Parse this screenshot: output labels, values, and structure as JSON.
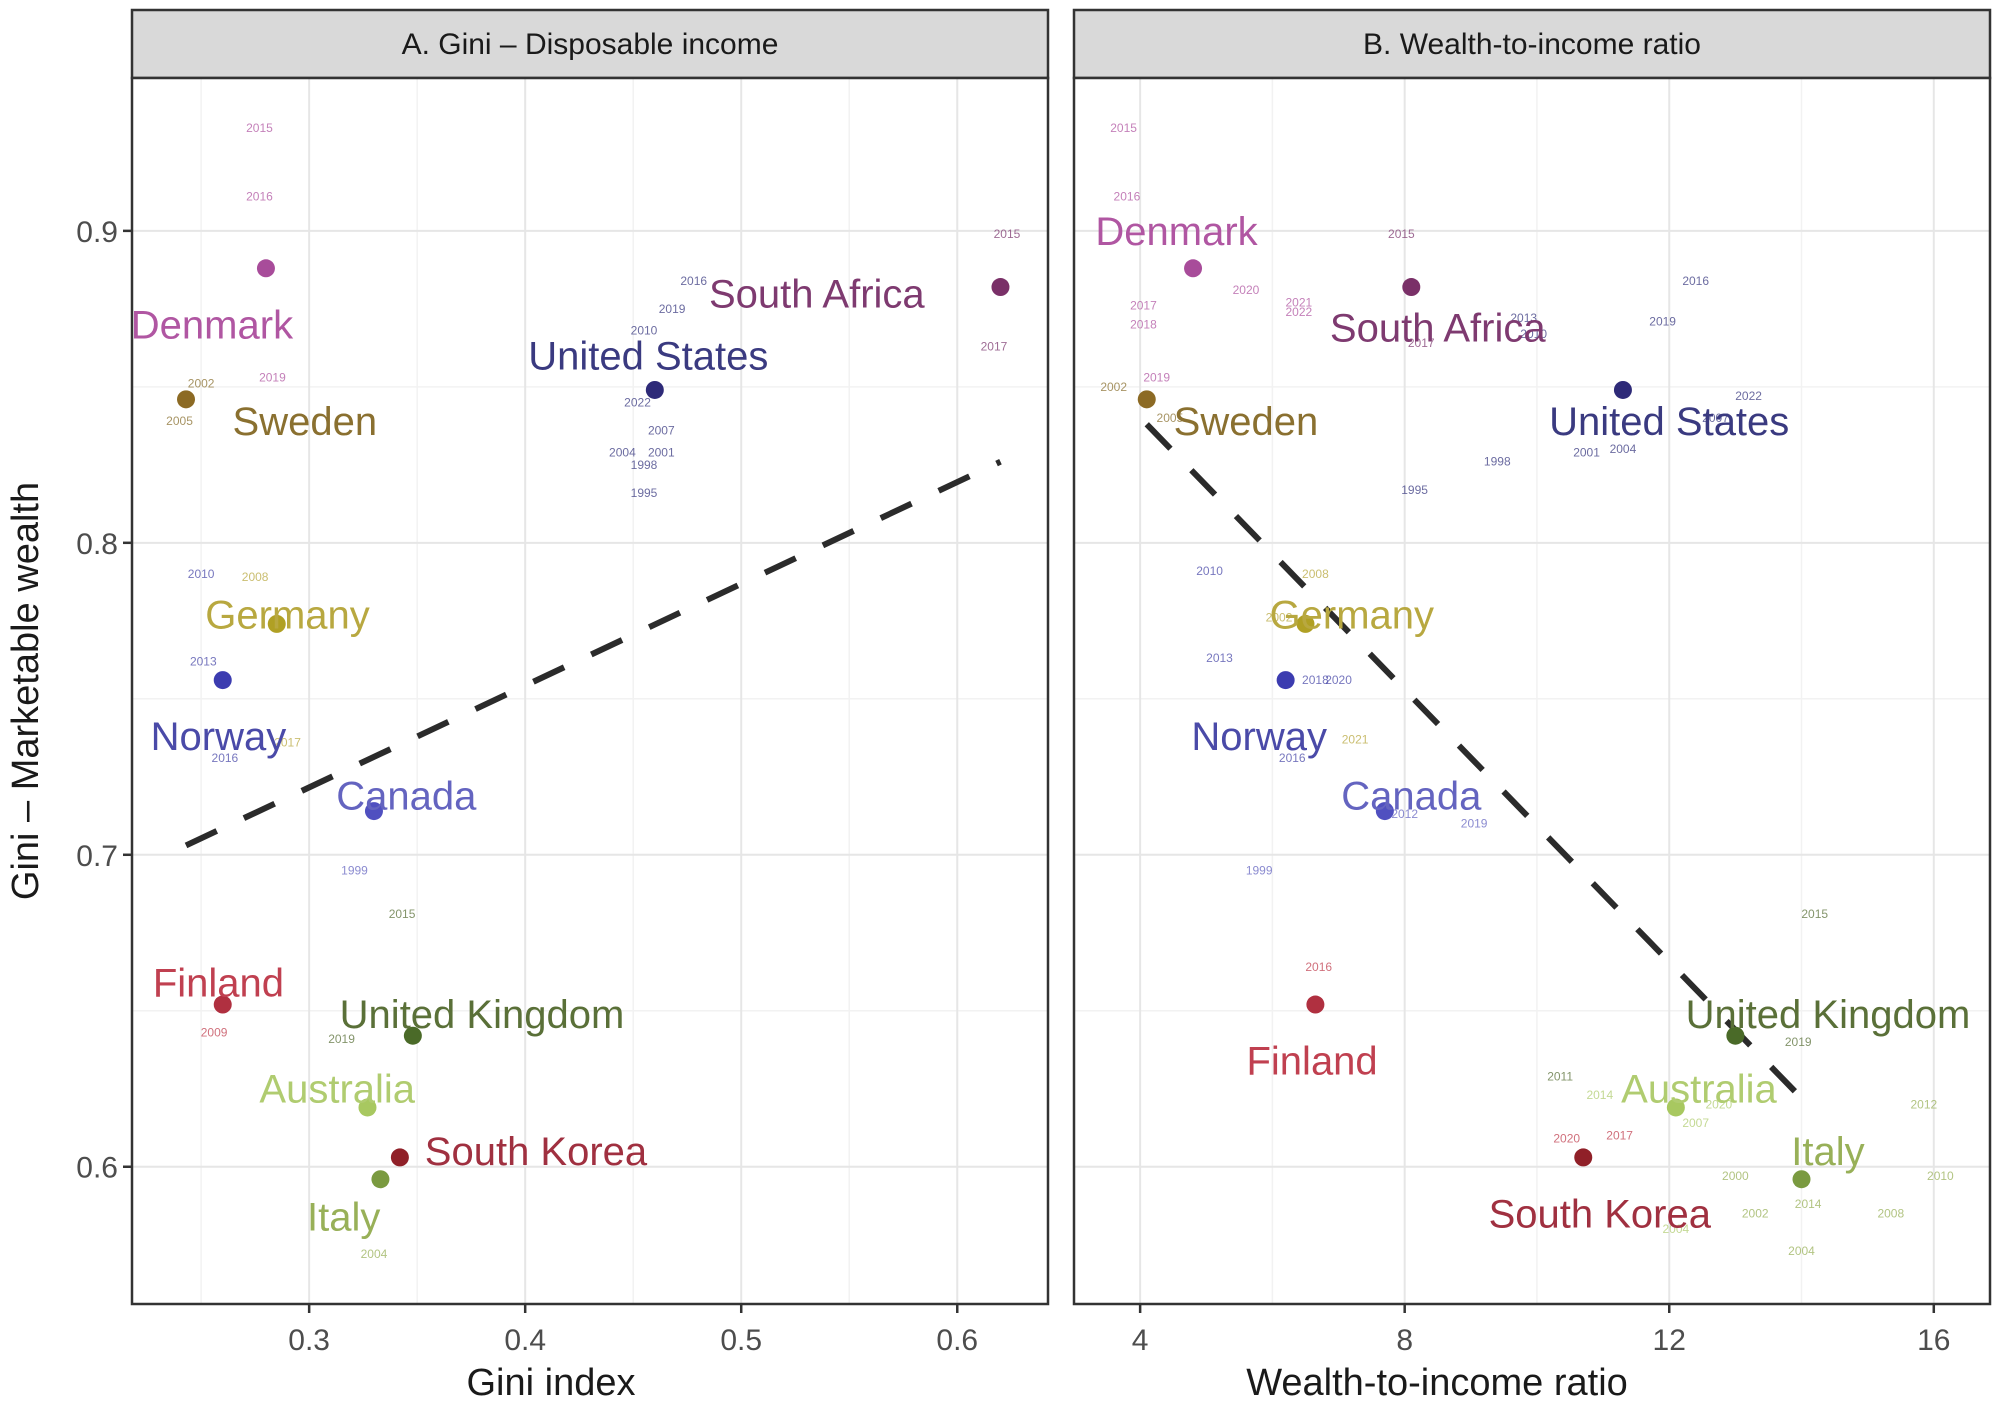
{
  "figure": {
    "ylabel": "Gini – Marketable wealth"
  },
  "chart_data": [
    {
      "type": "scatter",
      "panel": "A",
      "title": "A. Gini – Disposable income",
      "xlabel": "Gini index",
      "ylabel": "Gini – Marketable wealth",
      "xlim": [
        0.218,
        0.642
      ],
      "ylim": [
        0.556,
        0.949
      ],
      "xticks": [
        0.3,
        0.4,
        0.5,
        0.6
      ],
      "xtick_labels": [
        "0.3",
        "0.4",
        "0.5",
        "0.6"
      ],
      "yticks": [
        0.6,
        0.7,
        0.8,
        0.9
      ],
      "ytick_labels": [
        "0.6",
        "0.7",
        "0.8",
        "0.9"
      ],
      "grid": true,
      "trend_line": {
        "style": "dashed",
        "x": [
          0.243,
          0.62
        ],
        "y": [
          0.703,
          0.826
        ]
      },
      "points": [
        {
          "country": "Denmark",
          "x": 0.28,
          "y": 0.888,
          "color": "#a84c9a",
          "label_color": "#b056a2"
        },
        {
          "country": "South Africa",
          "x": 0.62,
          "y": 0.882,
          "color": "#7a3068",
          "label_color": "#7e3a70"
        },
        {
          "country": "United States",
          "x": 0.46,
          "y": 0.849,
          "color": "#2e2a78",
          "label_color": "#3a3a80"
        },
        {
          "country": "Sweden",
          "x": 0.243,
          "y": 0.846,
          "color": "#8c6a24",
          "label_color": "#8a7030"
        },
        {
          "country": "Germany",
          "x": 0.285,
          "y": 0.774,
          "color": "#b0a024",
          "label_color": "#b8a840"
        },
        {
          "country": "Norway",
          "x": 0.26,
          "y": 0.756,
          "color": "#3c3cb0",
          "label_color": "#4a4aa8"
        },
        {
          "country": "Canada",
          "x": 0.33,
          "y": 0.714,
          "color": "#5050c0",
          "label_color": "#6464c0"
        },
        {
          "country": "Finland",
          "x": 0.26,
          "y": 0.652,
          "color": "#b03040",
          "label_color": "#c04050"
        },
        {
          "country": "United Kingdom",
          "x": 0.348,
          "y": 0.642,
          "color": "#4a6a28",
          "label_color": "#5a7038"
        },
        {
          "country": "Australia",
          "x": 0.327,
          "y": 0.619,
          "color": "#a8c860",
          "label_color": "#b0cc70"
        },
        {
          "country": "South Korea",
          "x": 0.342,
          "y": 0.603,
          "color": "#902028",
          "label_color": "#a03040"
        },
        {
          "country": "Italy",
          "x": 0.333,
          "y": 0.596,
          "color": "#7a9a40",
          "label_color": "#98b058"
        }
      ],
      "country_labels": [
        {
          "text": "Denmark",
          "x": 0.255,
          "y": 0.87,
          "color": "#b056a2"
        },
        {
          "text": "South Africa",
          "x": 0.535,
          "y": 0.88,
          "color": "#7e3a70"
        },
        {
          "text": "United States",
          "x": 0.457,
          "y": 0.86,
          "color": "#3a3a80"
        },
        {
          "text": "Sweden",
          "x": 0.298,
          "y": 0.839,
          "color": "#8a7030"
        },
        {
          "text": "Germany",
          "x": 0.29,
          "y": 0.777,
          "color": "#b8a840"
        },
        {
          "text": "Norway",
          "x": 0.258,
          "y": 0.738,
          "color": "#4a4aa8"
        },
        {
          "text": "Canada",
          "x": 0.345,
          "y": 0.719,
          "color": "#6464c0"
        },
        {
          "text": "Finland",
          "x": 0.258,
          "y": 0.659,
          "color": "#c04050"
        },
        {
          "text": "United Kingdom",
          "x": 0.38,
          "y": 0.649,
          "color": "#5a7038"
        },
        {
          "text": "Australia",
          "x": 0.313,
          "y": 0.625,
          "color": "#b0cc70"
        },
        {
          "text": "South Korea",
          "x": 0.405,
          "y": 0.605,
          "color": "#a03040"
        },
        {
          "text": "Italy",
          "x": 0.316,
          "y": 0.584,
          "color": "#98b058"
        }
      ],
      "year_labels": [
        {
          "text": "2015",
          "x": 0.277,
          "y": 0.933,
          "color": "#b056a2"
        },
        {
          "text": "2016",
          "x": 0.277,
          "y": 0.911,
          "color": "#b056a2"
        },
        {
          "text": "2019",
          "x": 0.283,
          "y": 0.853,
          "color": "#b056a2"
        },
        {
          "text": "2002",
          "x": 0.25,
          "y": 0.851,
          "color": "#8a7030"
        },
        {
          "text": "2005",
          "x": 0.24,
          "y": 0.839,
          "color": "#8a7030"
        },
        {
          "text": "2015",
          "x": 0.623,
          "y": 0.899,
          "color": "#7e3a70"
        },
        {
          "text": "2017",
          "x": 0.617,
          "y": 0.863,
          "color": "#7e3a70"
        },
        {
          "text": "2016",
          "x": 0.478,
          "y": 0.884,
          "color": "#3a3a80"
        },
        {
          "text": "2019",
          "x": 0.468,
          "y": 0.875,
          "color": "#3a3a80"
        },
        {
          "text": "2010",
          "x": 0.455,
          "y": 0.868,
          "color": "#3a3a80"
        },
        {
          "text": "2022",
          "x": 0.452,
          "y": 0.845,
          "color": "#3a3a80"
        },
        {
          "text": "2007",
          "x": 0.463,
          "y": 0.836,
          "color": "#3a3a80"
        },
        {
          "text": "2004",
          "x": 0.445,
          "y": 0.829,
          "color": "#3a3a80"
        },
        {
          "text": "2001",
          "x": 0.463,
          "y": 0.829,
          "color": "#3a3a80"
        },
        {
          "text": "1998",
          "x": 0.455,
          "y": 0.825,
          "color": "#3a3a80"
        },
        {
          "text": "1995",
          "x": 0.455,
          "y": 0.816,
          "color": "#3a3a80"
        },
        {
          "text": "2010",
          "x": 0.25,
          "y": 0.79,
          "color": "#4a4aa8"
        },
        {
          "text": "2008",
          "x": 0.275,
          "y": 0.789,
          "color": "#b8a840"
        },
        {
          "text": "2013",
          "x": 0.251,
          "y": 0.762,
          "color": "#4a4aa8"
        },
        {
          "text": "2017",
          "x": 0.29,
          "y": 0.736,
          "color": "#b8a840"
        },
        {
          "text": "2016",
          "x": 0.261,
          "y": 0.731,
          "color": "#4a4aa8"
        },
        {
          "text": "1999",
          "x": 0.321,
          "y": 0.695,
          "color": "#6464c0"
        },
        {
          "text": "2015",
          "x": 0.343,
          "y": 0.681,
          "color": "#5a7038"
        },
        {
          "text": "2009",
          "x": 0.256,
          "y": 0.643,
          "color": "#c04050"
        },
        {
          "text": "2019",
          "x": 0.315,
          "y": 0.641,
          "color": "#5a7038"
        },
        {
          "text": "2004",
          "x": 0.33,
          "y": 0.572,
          "color": "#98b058"
        }
      ]
    },
    {
      "type": "scatter",
      "panel": "B",
      "title": "B. Wealth-to-income ratio",
      "xlabel": "Wealth-to-income ratio",
      "ylabel": "Gini – Marketable wealth",
      "xlim": [
        3.0,
        16.85
      ],
      "ylim": [
        0.556,
        0.949
      ],
      "xticks": [
        4,
        8,
        12,
        16
      ],
      "xtick_labels": [
        "4",
        "8",
        "12",
        "16"
      ],
      "yticks": [
        0.6,
        0.7,
        0.8,
        0.9
      ],
      "grid": true,
      "trend_line": {
        "style": "dashed",
        "x": [
          4.1,
          14.0
        ],
        "y": [
          0.838,
          0.622
        ]
      },
      "points": [
        {
          "country": "Denmark",
          "x": 4.8,
          "y": 0.888,
          "color": "#a84c9a"
        },
        {
          "country": "South Africa",
          "x": 8.1,
          "y": 0.882,
          "color": "#7a3068"
        },
        {
          "country": "United States",
          "x": 11.3,
          "y": 0.849,
          "color": "#2e2a78"
        },
        {
          "country": "Sweden",
          "x": 4.1,
          "y": 0.846,
          "color": "#8c6a24"
        },
        {
          "country": "Germany",
          "x": 6.5,
          "y": 0.774,
          "color": "#b0a024"
        },
        {
          "country": "Norway",
          "x": 6.2,
          "y": 0.756,
          "color": "#3c3cb0"
        },
        {
          "country": "Canada",
          "x": 7.7,
          "y": 0.714,
          "color": "#5050c0"
        },
        {
          "country": "Finland",
          "x": 6.65,
          "y": 0.652,
          "color": "#b03040"
        },
        {
          "country": "United Kingdom",
          "x": 13.0,
          "y": 0.642,
          "color": "#4a6a28"
        },
        {
          "country": "Australia",
          "x": 12.1,
          "y": 0.619,
          "color": "#a8c860"
        },
        {
          "country": "South Korea",
          "x": 10.7,
          "y": 0.603,
          "color": "#902028"
        },
        {
          "country": "Italy",
          "x": 14.0,
          "y": 0.596,
          "color": "#7a9a40"
        }
      ],
      "country_labels": [
        {
          "text": "Denmark",
          "x": 4.55,
          "y": 0.9,
          "color": "#b056a2"
        },
        {
          "text": "South Africa",
          "x": 8.5,
          "y": 0.869,
          "color": "#7e3a70"
        },
        {
          "text": "United States",
          "x": 12.0,
          "y": 0.839,
          "color": "#3a3a80"
        },
        {
          "text": "Sweden",
          "x": 5.6,
          "y": 0.839,
          "color": "#8a7030"
        },
        {
          "text": "Germany",
          "x": 7.2,
          "y": 0.777,
          "color": "#b8a840"
        },
        {
          "text": "Norway",
          "x": 5.8,
          "y": 0.738,
          "color": "#4a4aa8"
        },
        {
          "text": "Canada",
          "x": 8.1,
          "y": 0.719,
          "color": "#6464c0"
        },
        {
          "text": "Finland",
          "x": 6.6,
          "y": 0.634,
          "color": "#c04050"
        },
        {
          "text": "United Kingdom",
          "x": 14.4,
          "y": 0.649,
          "color": "#5a7038"
        },
        {
          "text": "Australia",
          "x": 12.45,
          "y": 0.625,
          "color": "#b0cc70"
        },
        {
          "text": "Italy",
          "x": 14.4,
          "y": 0.605,
          "color": "#98b058"
        },
        {
          "text": "South Korea",
          "x": 10.95,
          "y": 0.585,
          "color": "#a03040"
        }
      ],
      "year_labels": [
        {
          "text": "2015",
          "x": 3.75,
          "y": 0.933,
          "color": "#b056a2"
        },
        {
          "text": "2016",
          "x": 3.8,
          "y": 0.911,
          "color": "#b056a2"
        },
        {
          "text": "2020",
          "x": 5.6,
          "y": 0.881,
          "color": "#b056a2"
        },
        {
          "text": "2021",
          "x": 6.4,
          "y": 0.877,
          "color": "#b056a2"
        },
        {
          "text": "2022",
          "x": 6.4,
          "y": 0.874,
          "color": "#b056a2"
        },
        {
          "text": "2017",
          "x": 4.05,
          "y": 0.876,
          "color": "#b056a2"
        },
        {
          "text": "2018",
          "x": 4.05,
          "y": 0.87,
          "color": "#b056a2"
        },
        {
          "text": "2015",
          "x": 7.95,
          "y": 0.899,
          "color": "#7e3a70"
        },
        {
          "text": "2017",
          "x": 8.25,
          "y": 0.864,
          "color": "#7e3a70"
        },
        {
          "text": "2019",
          "x": 4.25,
          "y": 0.853,
          "color": "#b056a2"
        },
        {
          "text": "2002",
          "x": 3.6,
          "y": 0.85,
          "color": "#8a7030"
        },
        {
          "text": "2005",
          "x": 4.45,
          "y": 0.84,
          "color": "#8a7030"
        },
        {
          "text": "2013",
          "x": 9.8,
          "y": 0.872,
          "color": "#3a3a80"
        },
        {
          "text": "2010",
          "x": 9.95,
          "y": 0.867,
          "color": "#3a3a80"
        },
        {
          "text": "2019",
          "x": 11.9,
          "y": 0.871,
          "color": "#3a3a80"
        },
        {
          "text": "2016",
          "x": 12.4,
          "y": 0.884,
          "color": "#3a3a80"
        },
        {
          "text": "2022",
          "x": 13.2,
          "y": 0.847,
          "color": "#3a3a80"
        },
        {
          "text": "2007",
          "x": 12.7,
          "y": 0.84,
          "color": "#3a3a80"
        },
        {
          "text": "2001",
          "x": 10.75,
          "y": 0.829,
          "color": "#3a3a80"
        },
        {
          "text": "2004",
          "x": 11.3,
          "y": 0.83,
          "color": "#3a3a80"
        },
        {
          "text": "1998",
          "x": 9.4,
          "y": 0.826,
          "color": "#3a3a80"
        },
        {
          "text": "1995",
          "x": 8.15,
          "y": 0.817,
          "color": "#3a3a80"
        },
        {
          "text": "2010",
          "x": 5.05,
          "y": 0.791,
          "color": "#4a4aa8"
        },
        {
          "text": "2008",
          "x": 6.65,
          "y": 0.79,
          "color": "#b8a840"
        },
        {
          "text": "2002",
          "x": 6.1,
          "y": 0.776,
          "color": "#b8a840"
        },
        {
          "text": "2013",
          "x": 5.2,
          "y": 0.763,
          "color": "#4a4aa8"
        },
        {
          "text": "2018",
          "x": 6.65,
          "y": 0.756,
          "color": "#4a4aa8"
        },
        {
          "text": "2020",
          "x": 7.0,
          "y": 0.756,
          "color": "#4a4aa8"
        },
        {
          "text": "2021",
          "x": 7.25,
          "y": 0.737,
          "color": "#b8a840"
        },
        {
          "text": "2016",
          "x": 6.3,
          "y": 0.731,
          "color": "#4a4aa8"
        },
        {
          "text": "2019",
          "x": 9.05,
          "y": 0.71,
          "color": "#6464c0"
        },
        {
          "text": "2012",
          "x": 8.0,
          "y": 0.713,
          "color": "#6464c0"
        },
        {
          "text": "1999",
          "x": 5.8,
          "y": 0.695,
          "color": "#6464c0"
        },
        {
          "text": "2015",
          "x": 14.2,
          "y": 0.681,
          "color": "#5a7038"
        },
        {
          "text": "2016",
          "x": 6.7,
          "y": 0.664,
          "color": "#c04050"
        },
        {
          "text": "2019",
          "x": 13.95,
          "y": 0.64,
          "color": "#5a7038"
        },
        {
          "text": "2011",
          "x": 10.35,
          "y": 0.629,
          "color": "#5a7038"
        },
        {
          "text": "2014",
          "x": 10.95,
          "y": 0.623,
          "color": "#b0cc70"
        },
        {
          "text": "2020",
          "x": 12.75,
          "y": 0.62,
          "color": "#b0cc70"
        },
        {
          "text": "2012",
          "x": 15.85,
          "y": 0.62,
          "color": "#98b058"
        },
        {
          "text": "2007",
          "x": 12.4,
          "y": 0.614,
          "color": "#b0cc70"
        },
        {
          "text": "2020",
          "x": 10.45,
          "y": 0.609,
          "color": "#c04050"
        },
        {
          "text": "2017",
          "x": 11.25,
          "y": 0.61,
          "color": "#c04050"
        },
        {
          "text": "2010",
          "x": 16.1,
          "y": 0.597,
          "color": "#98b058"
        },
        {
          "text": "2000",
          "x": 13.0,
          "y": 0.597,
          "color": "#98b058"
        },
        {
          "text": "2014",
          "x": 14.1,
          "y": 0.588,
          "color": "#98b058"
        },
        {
          "text": "2002",
          "x": 13.3,
          "y": 0.585,
          "color": "#98b058"
        },
        {
          "text": "2008",
          "x": 15.35,
          "y": 0.585,
          "color": "#98b058"
        },
        {
          "text": "2004",
          "x": 12.1,
          "y": 0.58,
          "color": "#b0cc70"
        },
        {
          "text": "2004",
          "x": 14.0,
          "y": 0.573,
          "color": "#98b058"
        }
      ]
    }
  ]
}
